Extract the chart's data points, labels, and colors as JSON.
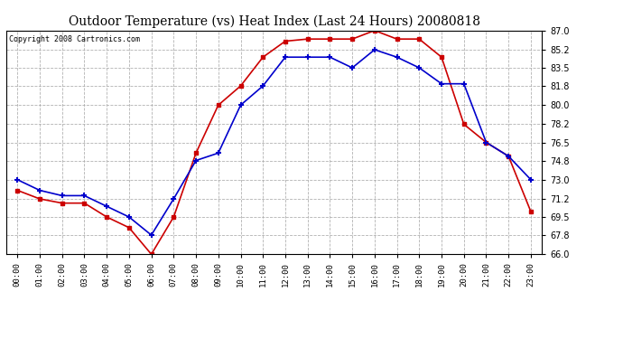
{
  "title": "Outdoor Temperature (vs) Heat Index (Last 24 Hours) 20080818",
  "copyright": "Copyright 2008 Cartronics.com",
  "hours": [
    "00:00",
    "01:00",
    "02:00",
    "03:00",
    "04:00",
    "05:00",
    "06:00",
    "07:00",
    "08:00",
    "09:00",
    "10:00",
    "11:00",
    "12:00",
    "13:00",
    "14:00",
    "15:00",
    "16:00",
    "17:00",
    "18:00",
    "19:00",
    "20:00",
    "21:00",
    "22:00",
    "23:00"
  ],
  "temp": [
    73.0,
    72.0,
    71.5,
    71.5,
    70.5,
    69.5,
    67.8,
    71.2,
    74.8,
    75.5,
    80.0,
    81.8,
    84.5,
    84.5,
    84.5,
    83.5,
    85.2,
    84.5,
    83.5,
    82.0,
    82.0,
    76.5,
    75.2,
    73.0
  ],
  "heat_index": [
    72.0,
    71.2,
    70.8,
    70.8,
    69.5,
    68.5,
    66.0,
    69.5,
    75.5,
    80.0,
    81.8,
    84.5,
    86.0,
    86.2,
    86.2,
    86.2,
    87.0,
    86.2,
    86.2,
    84.5,
    78.2,
    76.5,
    75.2,
    70.0
  ],
  "ylim": [
    66.0,
    87.0
  ],
  "yticks": [
    66.0,
    67.8,
    69.5,
    71.2,
    73.0,
    74.8,
    76.5,
    78.2,
    80.0,
    81.8,
    83.5,
    85.2,
    87.0
  ],
  "temp_color": "#0000cc",
  "heat_color": "#cc0000",
  "bg_color": "#ffffff",
  "grid_color": "#aaaaaa",
  "title_fontsize": 10,
  "copyright_fontsize": 6
}
